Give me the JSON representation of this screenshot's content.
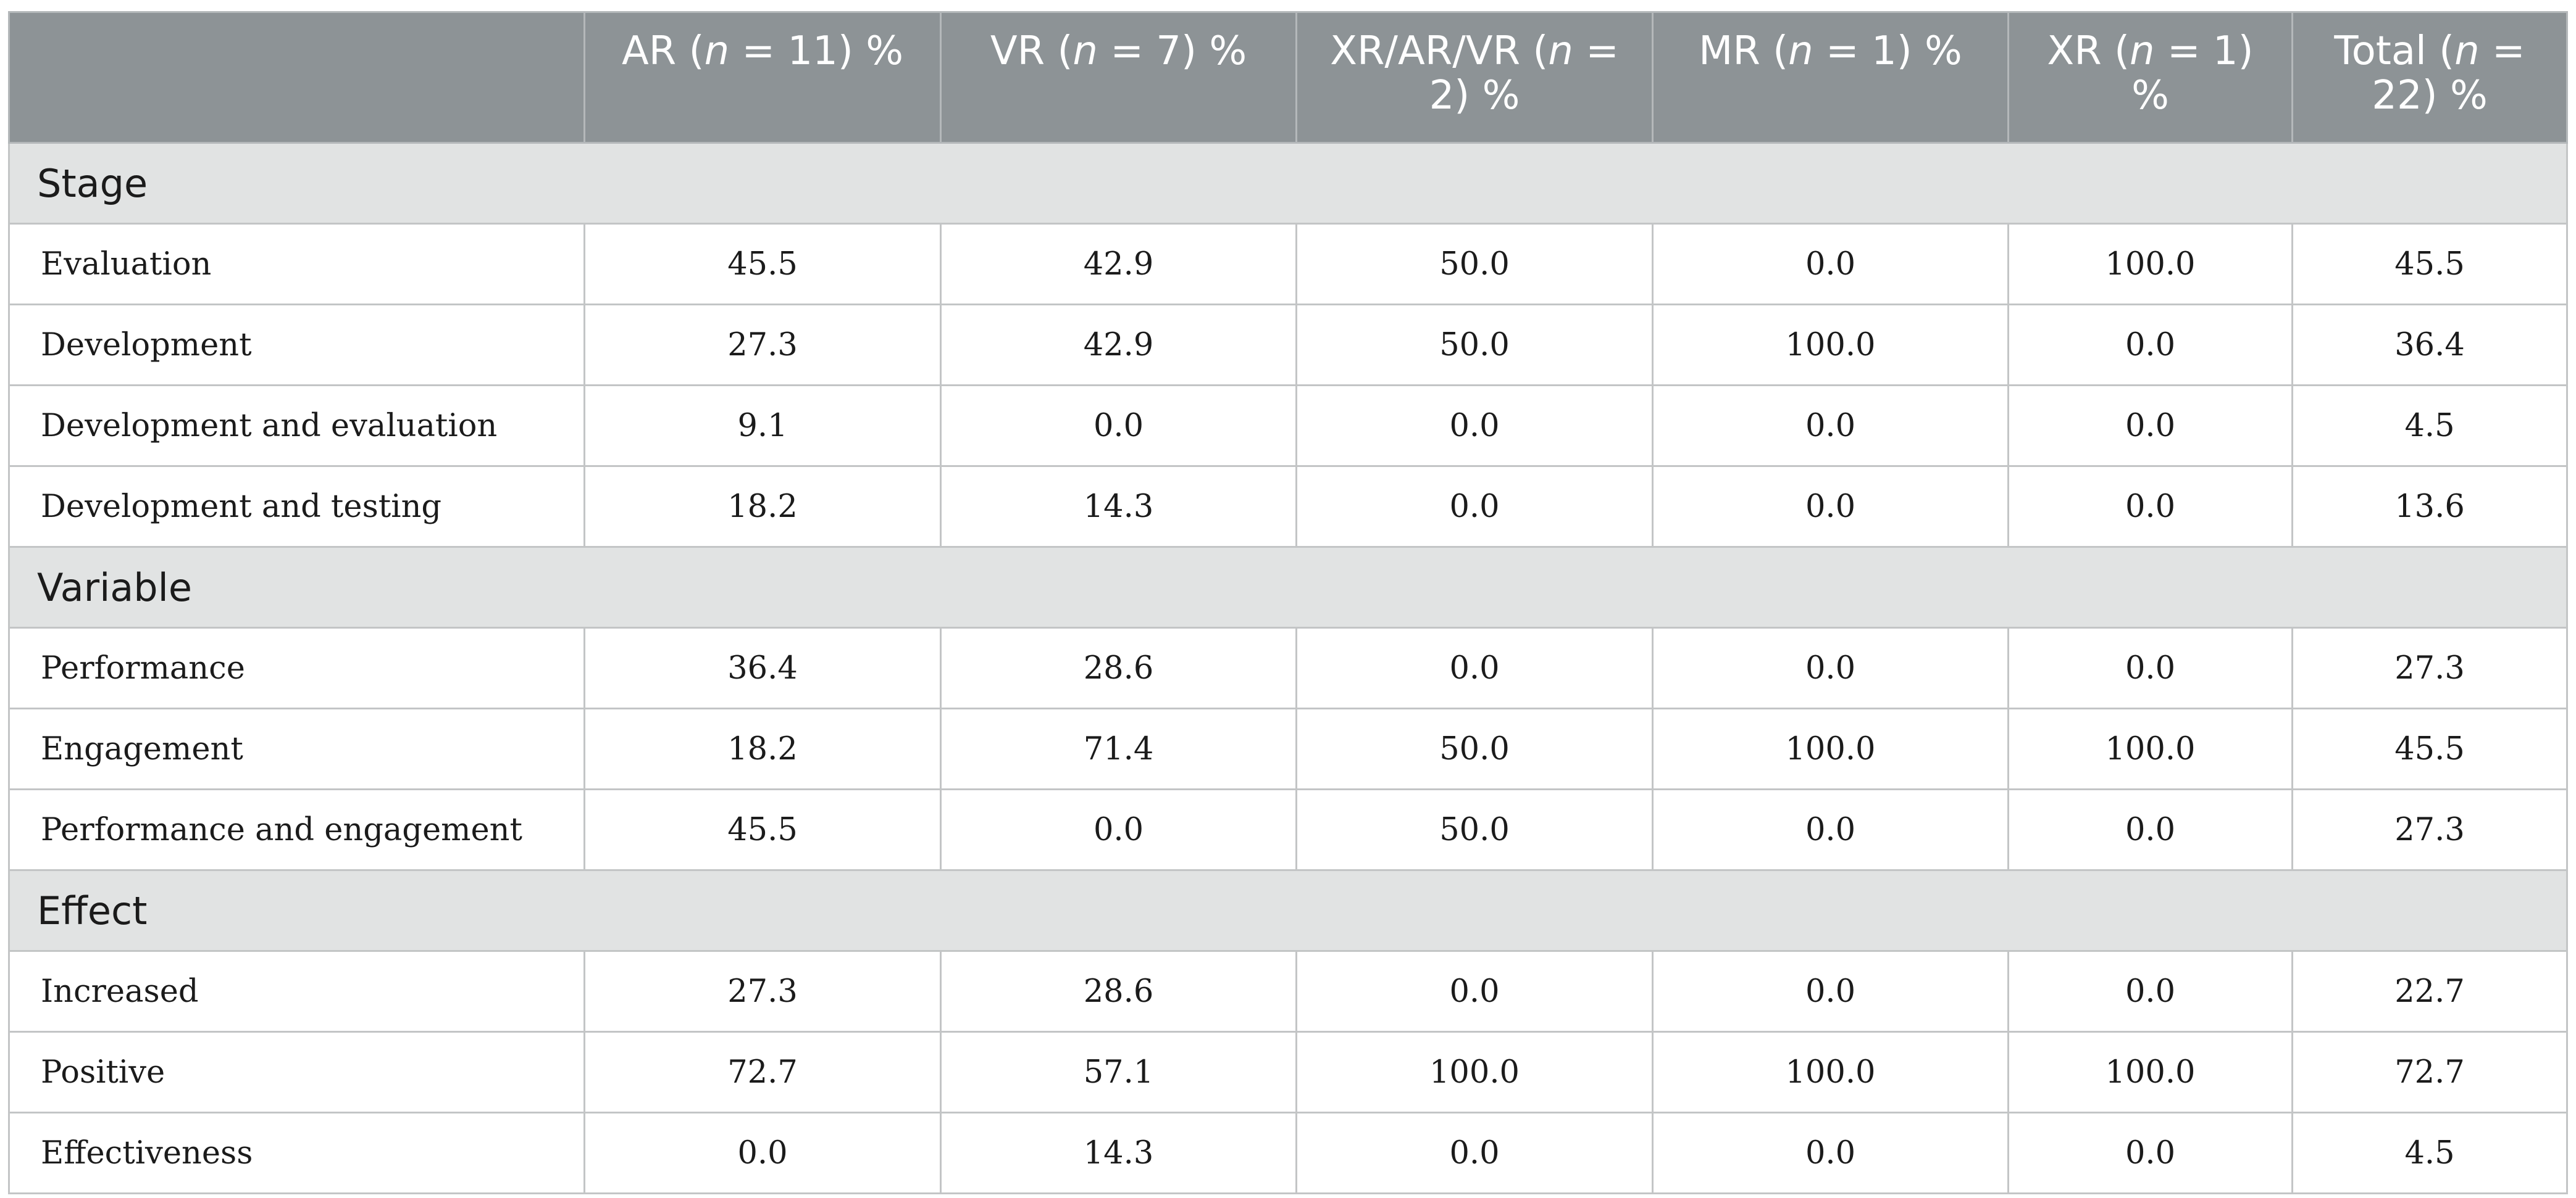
{
  "table": {
    "header": {
      "corner": "",
      "columns": [
        {
          "prefix": "AR (",
          "n_symbol": "n",
          "suffix": " = 11) %"
        },
        {
          "prefix": "VR (",
          "n_symbol": "n",
          "suffix": " = 7) %"
        },
        {
          "prefix": "XR/AR/VR (",
          "n_symbol": "n",
          "suffix": " = 2) %"
        },
        {
          "prefix": "MR (",
          "n_symbol": "n",
          "suffix": " = 1) %"
        },
        {
          "prefix": "XR (",
          "n_symbol": "n",
          "suffix": " = 1) %"
        },
        {
          "prefix": "Total (",
          "n_symbol": "n",
          "suffix": " = 22) %"
        }
      ]
    },
    "sections": [
      {
        "title": "Stage",
        "rows": [
          {
            "label": "Evaluation",
            "values": [
              "45.5",
              "42.9",
              "50.0",
              "0.0",
              "100.0",
              "45.5"
            ]
          },
          {
            "label": "Development",
            "values": [
              "27.3",
              "42.9",
              "50.0",
              "100.0",
              "0.0",
              "36.4"
            ]
          },
          {
            "label": "Development and evaluation",
            "values": [
              "9.1",
              "0.0",
              "0.0",
              "0.0",
              "0.0",
              "4.5"
            ]
          },
          {
            "label": "Development and testing",
            "values": [
              "18.2",
              "14.3",
              "0.0",
              "0.0",
              "0.0",
              "13.6"
            ]
          }
        ]
      },
      {
        "title": "Variable",
        "rows": [
          {
            "label": "Performance",
            "values": [
              "36.4",
              "28.6",
              "0.0",
              "0.0",
              "0.0",
              "27.3"
            ]
          },
          {
            "label": "Engagement",
            "values": [
              "18.2",
              "71.4",
              "50.0",
              "100.0",
              "100.0",
              "45.5"
            ]
          },
          {
            "label": "Performance and engagement",
            "values": [
              "45.5",
              "0.0",
              "50.0",
              "0.0",
              "0.0",
              "27.3"
            ]
          }
        ]
      },
      {
        "title": "Effect",
        "rows": [
          {
            "label": "Increased",
            "values": [
              "27.3",
              "28.6",
              "0.0",
              "0.0",
              "0.0",
              "22.7"
            ]
          },
          {
            "label": "Positive",
            "values": [
              "72.7",
              "57.1",
              "100.0",
              "100.0",
              "100.0",
              "72.7"
            ]
          },
          {
            "label": "Effectiveness",
            "values": [
              "0.0",
              "14.3",
              "0.0",
              "0.0",
              "0.0",
              "4.5"
            ]
          }
        ]
      }
    ]
  },
  "colors": {
    "header_bg": "#8d9396",
    "header_text": "#ffffff",
    "section_bg": "#e1e3e3",
    "border": "#c3c5c6",
    "body_text": "#1b1b1b"
  }
}
